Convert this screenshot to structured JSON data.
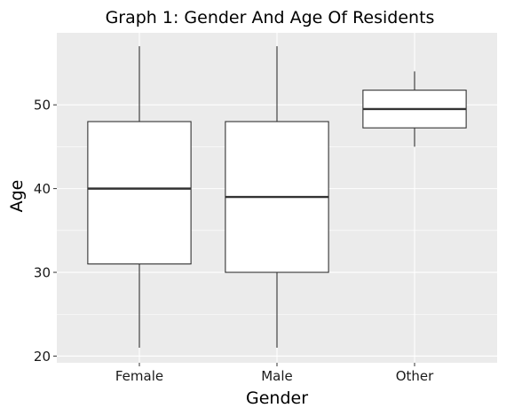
{
  "chart_data": {
    "type": "boxplot",
    "title": "Graph 1: Gender And Age Of Residents",
    "xlabel": "Gender",
    "ylabel": "Age",
    "ylim": [
      19.2,
      58.6
    ],
    "yticks": [
      20,
      30,
      40,
      50
    ],
    "grid": true,
    "categories": [
      "Female",
      "Male",
      "Other"
    ],
    "boxes": [
      {
        "category": "Female",
        "min": 21,
        "q1": 31,
        "median": 40,
        "q3": 48,
        "max": 57
      },
      {
        "category": "Male",
        "min": 21,
        "q1": 30,
        "median": 39,
        "q3": 48,
        "max": 57
      },
      {
        "category": "Other",
        "min": 45,
        "q1": 47.25,
        "median": 49.5,
        "q3": 51.75,
        "max": 54
      }
    ],
    "colors": {
      "panel": "#ebebeb",
      "grid": "#ffffff",
      "box_fill": "#ffffff",
      "box_line": "#333333"
    }
  }
}
